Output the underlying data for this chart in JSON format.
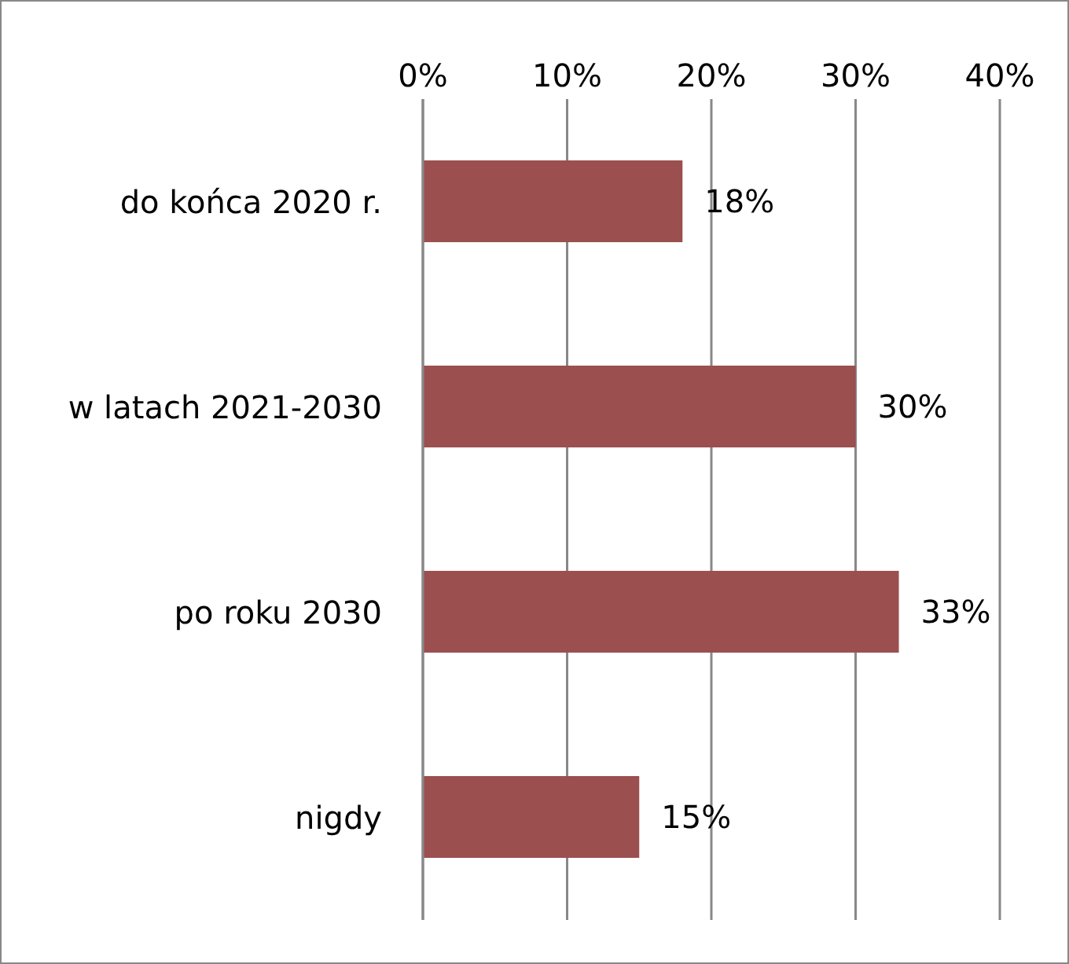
{
  "chart_data": {
    "type": "bar",
    "orientation": "horizontal",
    "categories": [
      "do końca 2020 r.",
      "w latach 2021-2030",
      "po roku 2030",
      "nigdy"
    ],
    "values": [
      18,
      30,
      33,
      15
    ],
    "value_labels": [
      "18%",
      "30%",
      "33%",
      "15%"
    ],
    "color": "#9c4f4f",
    "xlim": [
      0,
      40
    ],
    "xticks": [
      {
        "value": 0,
        "label": "0%"
      },
      {
        "value": 10,
        "label": "10%"
      },
      {
        "value": 20,
        "label": "20%"
      },
      {
        "value": 30,
        "label": "30%"
      },
      {
        "value": 40,
        "label": "40%"
      }
    ],
    "grid": "x"
  }
}
